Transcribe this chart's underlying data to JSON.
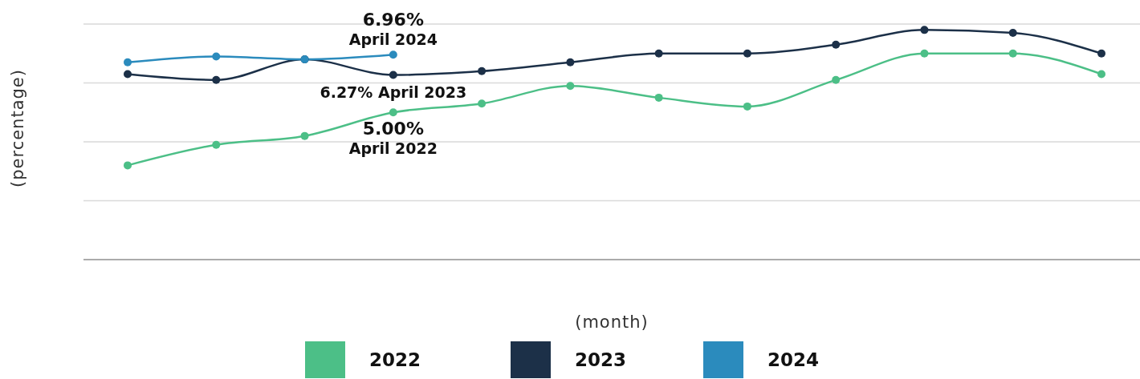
{
  "chart_data": {
    "type": "line",
    "xlabel": "(month)",
    "ylabel": "(percentage)",
    "categories": [
      null,
      null,
      null,
      null,
      null,
      null,
      null,
      null,
      null,
      null,
      null,
      null
    ],
    "series": [
      {
        "name": "2022",
        "color": "#4cbf87",
        "values": [
          3.2,
          3.9,
          4.2,
          5.0,
          5.3,
          5.9,
          5.5,
          5.2,
          6.1,
          7.0,
          7.0,
          6.3
        ],
        "value_labels": [
          null,
          null,
          null,
          "5.00%\nApril 2022",
          null,
          null,
          null,
          null,
          null,
          null,
          null,
          null
        ]
      },
      {
        "name": "2023",
        "color": "#1c3048",
        "values": [
          6.3,
          6.1,
          6.8,
          6.27,
          6.4,
          6.7,
          7.0,
          7.0,
          7.3,
          7.8,
          7.7,
          7.0
        ],
        "value_labels": [
          null,
          null,
          null,
          "6.27% April 2023",
          null,
          null,
          null,
          null,
          null,
          null,
          null,
          null
        ]
      },
      {
        "name": "2024",
        "color": "#2b8bbd",
        "values": [
          6.7,
          6.9,
          6.8,
          6.96,
          null,
          null,
          null,
          null,
          null,
          null,
          null,
          null
        ],
        "value_labels": [
          null,
          null,
          null,
          "6.96%\nApril 2024",
          null,
          null,
          null,
          null,
          null,
          null,
          null,
          null
        ]
      }
    ],
    "ylim": [
      0,
      8
    ],
    "tick_labels": false,
    "grid": "y",
    "legend": "bottom",
    "marker": "circle",
    "line_style": "solid"
  }
}
